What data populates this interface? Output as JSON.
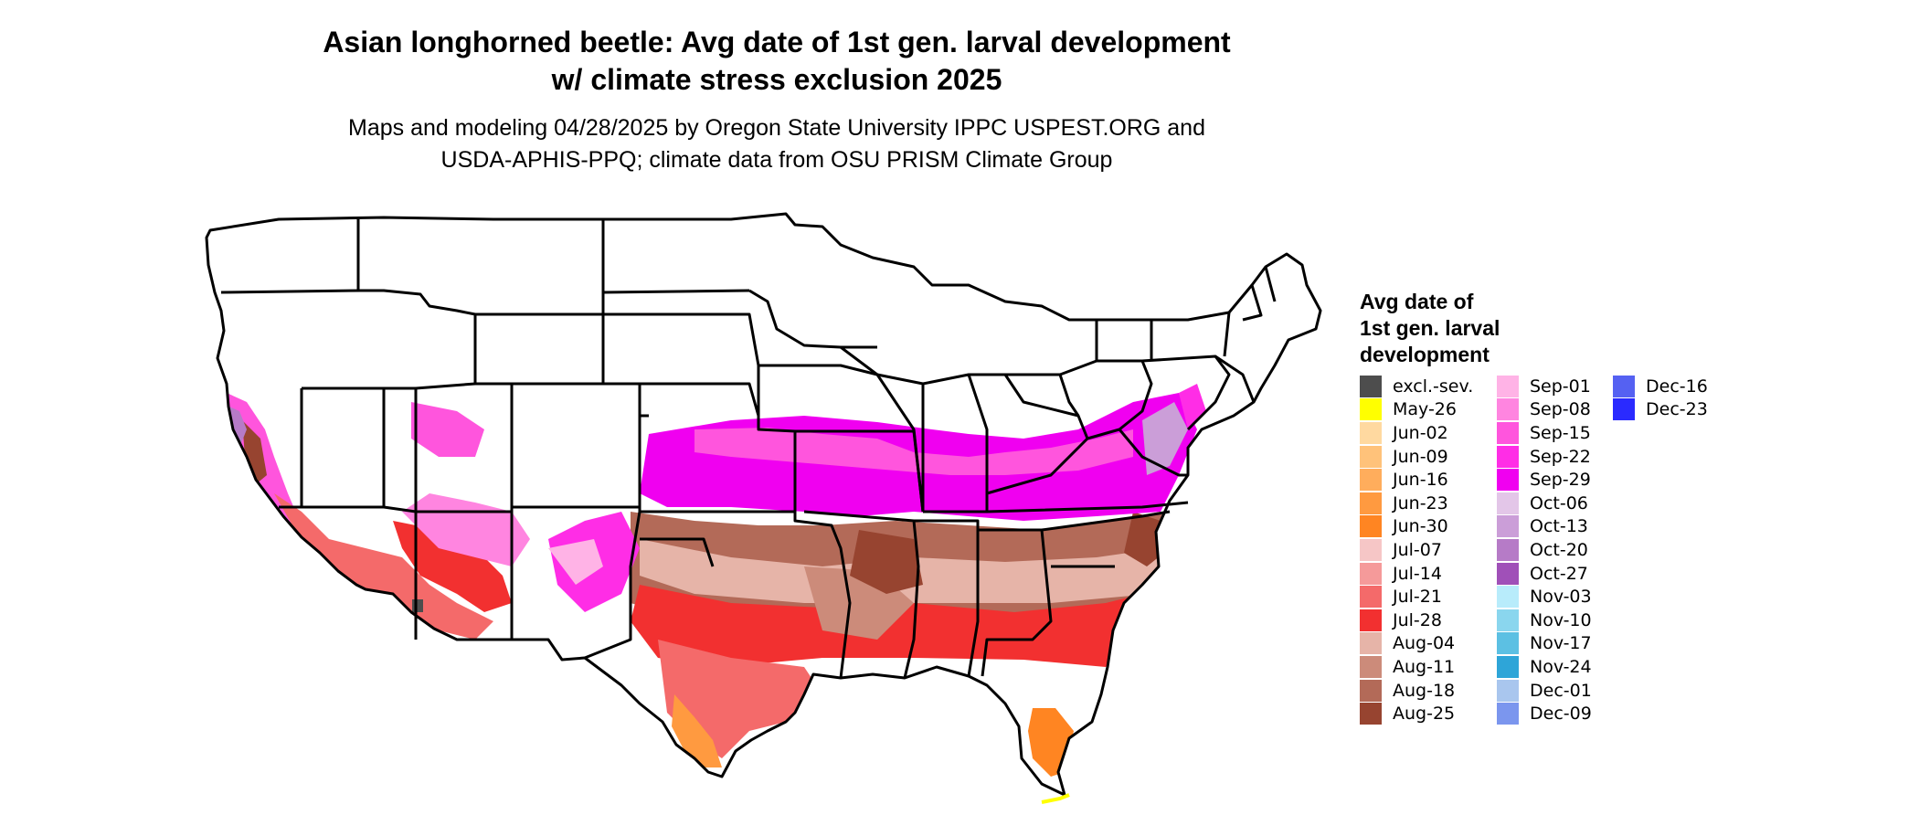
{
  "title_line1": "Asian longhorned beetle: Avg date of 1st gen. larval development",
  "title_line2": "w/ climate stress exclusion 2025",
  "subtitle_line1": "Maps and modeling 04/28/2025 by Oregon State University IPPC USPEST.ORG and",
  "subtitle_line2": "USDA-APHIS-PPQ; climate data from OSU PRISM Climate Group",
  "legend": {
    "title_line1": "Avg date of",
    "title_line2": "1st gen. larval",
    "title_line3": "development",
    "items": [
      {
        "label": "excl.-sev.",
        "color": "#4d4d4d"
      },
      {
        "label": "May-26",
        "color": "#ffff00"
      },
      {
        "label": "Jun-02",
        "color": "#ffd9a0"
      },
      {
        "label": "Jun-09",
        "color": "#ffc27a"
      },
      {
        "label": "Jun-16",
        "color": "#ffad5c"
      },
      {
        "label": "Jun-23",
        "color": "#ff9a40"
      },
      {
        "label": "Jun-30",
        "color": "#ff8522"
      },
      {
        "label": "Jul-07",
        "color": "#f6c6c6"
      },
      {
        "label": "Jul-14",
        "color": "#f59a9a"
      },
      {
        "label": "Jul-21",
        "color": "#f46a6a"
      },
      {
        "label": "Jul-28",
        "color": "#f23030"
      },
      {
        "label": "Aug-04",
        "color": "#e6b4a8"
      },
      {
        "label": "Aug-11",
        "color": "#cc8b7a"
      },
      {
        "label": "Aug-18",
        "color": "#b36a58"
      },
      {
        "label": "Aug-25",
        "color": "#974430"
      },
      {
        "label": "Sep-01",
        "color": "#ffb3e6"
      },
      {
        "label": "Sep-08",
        "color": "#ff85e0"
      },
      {
        "label": "Sep-15",
        "color": "#ff55dd"
      },
      {
        "label": "Sep-22",
        "color": "#ff2de6"
      },
      {
        "label": "Sep-29",
        "color": "#f000f0"
      },
      {
        "label": "Oct-06",
        "color": "#e3c6e8"
      },
      {
        "label": "Oct-13",
        "color": "#cb9ed8"
      },
      {
        "label": "Oct-20",
        "color": "#b67bc7"
      },
      {
        "label": "Oct-27",
        "color": "#a050b8"
      },
      {
        "label": "Nov-03",
        "color": "#b8ecfb"
      },
      {
        "label": "Nov-10",
        "color": "#8ad6ee"
      },
      {
        "label": "Nov-17",
        "color": "#5cc0e3"
      },
      {
        "label": "Nov-24",
        "color": "#2ea5d8"
      },
      {
        "label": "Dec-01",
        "color": "#a9c6ee"
      },
      {
        "label": "Dec-09",
        "color": "#7b96ee"
      },
      {
        "label": "Dec-16",
        "color": "#5561f2"
      },
      {
        "label": "Dec-23",
        "color": "#2a2aff"
      }
    ]
  }
}
